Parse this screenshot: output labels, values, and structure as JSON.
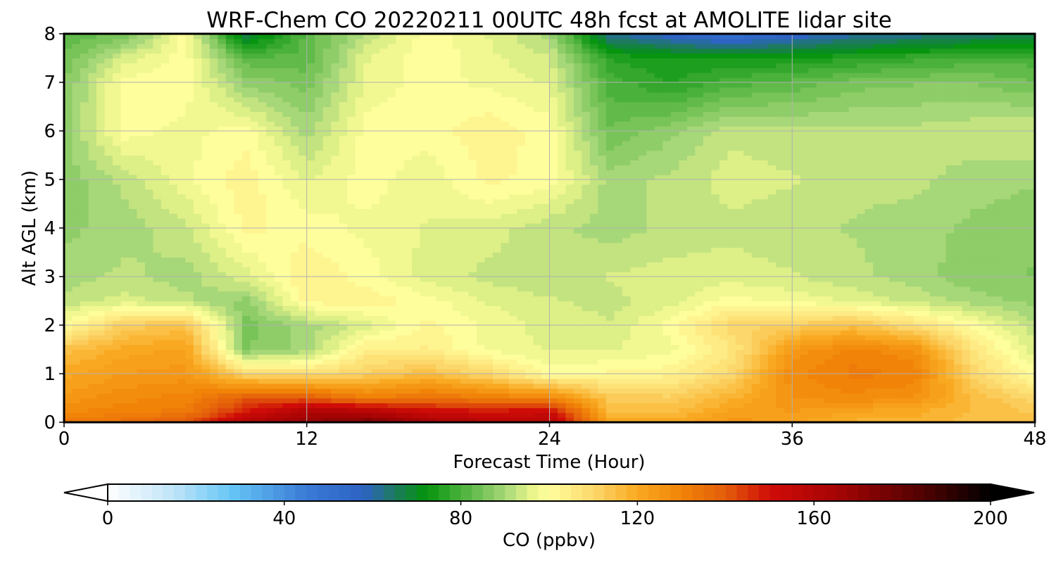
{
  "chart_data": {
    "type": "heatmap",
    "title": "WRF-Chem CO  20220211 00UTC 48h fcst at AMOLITE lidar site",
    "xlabel": "Forecast Time (Hour)",
    "ylabel": "Alt AGL (km)",
    "xlim": [
      0,
      48
    ],
    "ylim": [
      0,
      8
    ],
    "xticks": [
      0,
      12,
      24,
      36,
      48
    ],
    "yticks": [
      0,
      1,
      2,
      3,
      4,
      5,
      6,
      7,
      8
    ],
    "grid": true,
    "x_hours": [
      0,
      3,
      6,
      9,
      12,
      15,
      18,
      21,
      24,
      27,
      30,
      33,
      36,
      39,
      42,
      45,
      48
    ],
    "y_km": [
      0,
      0.25,
      0.5,
      1,
      1.5,
      2,
      2.5,
      3,
      4,
      5,
      6,
      7,
      7.5,
      8
    ],
    "z_ppbv": [
      [
        133,
        135,
        140,
        160,
        170,
        175,
        165,
        160,
        160,
        120,
        120,
        125,
        122,
        118,
        118,
        115,
        115
      ],
      [
        128,
        130,
        132,
        148,
        160,
        158,
        150,
        148,
        150,
        116,
        115,
        122,
        124,
        122,
        120,
        116,
        113
      ],
      [
        125,
        128,
        130,
        140,
        140,
        132,
        135,
        132,
        130,
        113,
        112,
        118,
        126,
        128,
        126,
        116,
        110
      ],
      [
        120,
        124,
        125,
        110,
        108,
        112,
        116,
        110,
        100,
        102,
        103,
        110,
        128,
        132,
        131,
        110,
        100
      ],
      [
        115,
        120,
        122,
        86,
        90,
        104,
        104,
        98,
        96,
        96,
        98,
        106,
        124,
        130,
        127,
        106,
        95
      ],
      [
        100,
        112,
        115,
        85,
        90,
        95,
        102,
        98,
        95,
        94,
        100,
        110,
        112,
        115,
        108,
        100,
        92
      ],
      [
        92,
        95,
        92,
        88,
        102,
        103,
        100,
        96,
        94,
        93,
        95,
        100,
        98,
        96,
        93,
        90,
        88
      ],
      [
        90,
        92,
        90,
        95,
        104,
        100,
        95,
        93,
        92,
        94,
        95,
        95,
        94,
        92,
        90,
        87,
        86
      ],
      [
        88,
        90,
        93,
        102,
        100,
        98,
        96,
        95,
        92,
        90,
        92,
        93,
        92,
        91,
        90,
        88,
        87
      ],
      [
        87,
        92,
        98,
        103,
        96,
        100,
        97,
        102,
        100,
        90,
        92,
        95,
        94,
        92,
        92,
        90,
        89
      ],
      [
        88,
        100,
        98,
        100,
        90,
        100,
        100,
        103,
        100,
        84,
        88,
        93,
        92,
        92,
        92,
        93,
        94
      ],
      [
        86,
        100,
        100,
        88,
        85,
        97,
        100,
        98,
        96,
        80,
        76,
        80,
        82,
        85,
        86,
        86,
        84
      ],
      [
        84,
        95,
        100,
        82,
        82,
        96,
        101,
        97,
        94,
        76,
        74,
        74,
        74,
        76,
        78,
        80,
        80
      ],
      [
        82,
        84,
        100,
        66,
        82,
        92,
        100,
        96,
        90,
        62,
        56,
        50,
        56,
        60,
        62,
        64,
        66
      ]
    ],
    "colorbar": {
      "label": "CO  (ppbv)",
      "vmin": 0,
      "vmax": 200,
      "ticks": [
        0,
        40,
        80,
        120,
        160,
        200
      ],
      "extend": "both",
      "colors": {
        "0": "#ffffff",
        "15": "#bfe4f8",
        "28": "#66c6f5",
        "45": "#3a7ad6",
        "58": "#2d63c3",
        "65": "#1d7a5f",
        "72": "#03930c",
        "82": "#5cb847",
        "90": "#a6d778",
        "96": "#e8f48a",
        "100": "#fffe9d",
        "110": "#fcd86c",
        "120": "#f9a921",
        "130": "#f18408",
        "140": "#e35c0a",
        "150": "#cf0c08",
        "165": "#a60404",
        "185": "#4e0202",
        "200": "#000000"
      }
    }
  }
}
